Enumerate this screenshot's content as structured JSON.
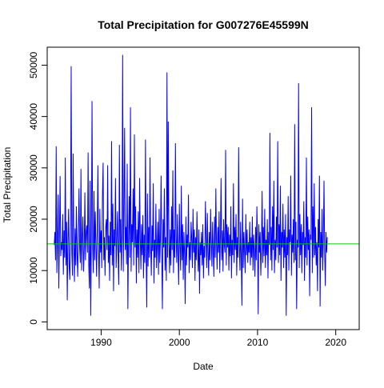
{
  "chart_data": {
    "type": "line",
    "title": "Total Precipitation for G007276E45599N",
    "xlabel": "Date",
    "ylabel": "Total Precipitation",
    "xlim": [
      1983.1,
      2023.0
    ],
    "ylim": [
      -1500,
      53500
    ],
    "x_ticks": [
      1990,
      2000,
      2010,
      2020
    ],
    "y_ticks": [
      0,
      10000,
      20000,
      30000,
      40000,
      50000
    ],
    "grid": false,
    "legend": "none",
    "x_start": 1984.0,
    "x_step": 0.0833333,
    "reference_line": {
      "value": 15200,
      "color": "#00cc00"
    },
    "series": [
      {
        "color": "#0000ff",
        "values": [
          15000,
          17500,
          12000,
          34200,
          9500,
          16000,
          24800,
          6500,
          16500,
          28400,
          12800,
          15500,
          14000,
          21000,
          9200,
          17800,
          12500,
          32000,
          11000,
          19500,
          4200,
          15800,
          22000,
          10500,
          8200,
          19000,
          49800,
          13500,
          9000,
          32800,
          15500,
          7800,
          18200,
          11000,
          22500,
          13500,
          8800,
          17000,
          26000,
          14500,
          11500,
          29800,
          10000,
          16500,
          20500,
          9800,
          14000,
          25200,
          12000,
          17500,
          18800,
          13500,
          33000,
          11000,
          6500,
          27500,
          1200,
          16000,
          43000,
          14500,
          9500,
          25500,
          12000,
          21500,
          15000,
          8800,
          18000,
          30500,
          14000,
          6500,
          22000,
          13500,
          17800,
          10500,
          24500,
          31000,
          12000,
          16500,
          9000,
          18500,
          20000,
          14000,
          30500,
          11500,
          16800,
          8000,
          19500,
          13000,
          35200,
          11000,
          23000,
          6000,
          18000,
          14800,
          28000,
          10500,
          15500,
          21500,
          12800,
          7200,
          34500,
          13500,
          20000,
          10000,
          16500,
          52000,
          9800,
          22000,
          37800,
          14000,
          18500,
          11200,
          30800,
          2500,
          16000,
          24500,
          12500,
          41800,
          9800,
          19000,
          15500,
          26000,
          11000,
          36500,
          14500,
          22500,
          7500,
          18000,
          12500,
          21500,
          9500,
          28000,
          16500,
          10200,
          19000,
          13000,
          20800,
          8500,
          17000,
          11500,
          35500,
          14000,
          2800,
          25000,
          10800,
          18500,
          12500,
          32000,
          15000,
          9000,
          18800,
          13800,
          27000,
          7500,
          16000,
          12500,
          23000,
          10500,
          14800,
          19500,
          9200,
          22000,
          11500,
          16500,
          28500,
          13000,
          2500,
          20000,
          14500,
          26000,
          10000,
          16500,
          8000,
          48600,
          12500,
          39000,
          15500,
          9500,
          18000,
          11000,
          22500,
          14000,
          29500,
          9500,
          18000,
          12500,
          34800,
          16000,
          11500,
          21000,
          13000,
          7200,
          23000,
          14500,
          10000,
          26500,
          12000,
          19000,
          8200,
          17500,
          13500,
          3500,
          20500,
          11000,
          17000,
          14500,
          24800,
          9500,
          15500,
          12000,
          19500,
          16000,
          10500,
          22000,
          13500,
          18000,
          8000,
          16500,
          12000,
          21500,
          14500,
          9800,
          18000,
          5500,
          15500,
          13000,
          17500,
          11000,
          19000,
          8500,
          14800,
          12500,
          23500,
          16000,
          10500,
          21200,
          13500,
          9000,
          17500,
          12000,
          22000,
          15500,
          10800,
          19500,
          14000,
          8800,
          20500,
          12500,
          26000,
          15000,
          10200,
          18500,
          13500,
          21500,
          9500,
          16500,
          28000,
          12000,
          17800,
          9800,
          20000,
          15000,
          13500,
          33500,
          11000,
          19000,
          14500,
          18500,
          10000,
          17000,
          12800,
          22500,
          8500,
          16000,
          13000,
          27000,
          11500,
          18500,
          14000,
          21000,
          9000,
          16500,
          12500,
          34000,
          15000,
          10000,
          19500,
          12500,
          3200,
          24000,
          10500,
          17500,
          14000,
          9500,
          21000,
          13000,
          18000,
          11500,
          15500,
          13500,
          19500,
          11000,
          16500,
          12500,
          20500,
          10000,
          17000,
          14000,
          8800,
          18500,
          12000,
          22500,
          15500,
          1500,
          19000,
          13500,
          17500,
          9000,
          14500,
          25500,
          11500,
          18500,
          12800,
          22000,
          10500,
          16000,
          13000,
          20000,
          8500,
          17500,
          15000,
          36800,
          12000,
          18500,
          10000,
          22500,
          14000,
          27500,
          9500,
          16000,
          12000,
          20500,
          14500,
          35200,
          11500,
          19000,
          13000,
          26500,
          8000,
          17500,
          14500,
          23000,
          10500,
          18000,
          12500,
          21000,
          1200,
          16500,
          13000,
          24500,
          10000,
          18000,
          15500,
          28500,
          9000,
          17000,
          13500,
          20000,
          11500,
          38500,
          12000,
          19500,
          2500,
          16000,
          14500,
          46500,
          10500,
          21000,
          13000,
          19000,
          9500,
          17500,
          15000,
          23500,
          8000,
          16500,
          12500,
          32000,
          11000,
          20500,
          14000,
          18000,
          5000,
          17000,
          16000,
          41800,
          9500,
          22500,
          12500,
          27000,
          13000,
          18500,
          11000,
          15500,
          6000,
          20000,
          14500,
          28500,
          3000,
          17500,
          12500,
          22000,
          10000,
          16000,
          27500,
          13500,
          7000,
          17500,
          13500,
          16500
        ]
      }
    ]
  }
}
